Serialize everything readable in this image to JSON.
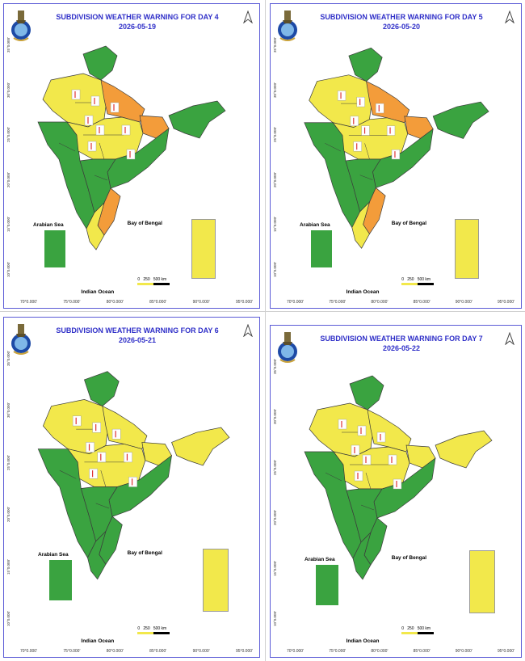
{
  "colors": {
    "green": "#3aa340",
    "yellow": "#f2e84b",
    "orange": "#f39c3a",
    "border": "#5b5bd6",
    "title": "#2f2fc8"
  },
  "x_ticks": [
    "70°0.000'",
    "75°0.000'",
    "80°0.000'",
    "85°0.000'",
    "90°0.000'",
    "95°0.000'"
  ],
  "y_ticks": [
    "10°0.000'",
    "15°0.000'",
    "20°0.000'",
    "25°0.000'",
    "30°0.000'",
    "35°0.000'"
  ],
  "labels": {
    "arabian_sea": "Arabian Sea",
    "bay_of_bengal": "Bay of Bengal",
    "indian_ocean": "Indian Ocean"
  },
  "scale": {
    "zero": "0",
    "mid": "250",
    "end": "500 km"
  },
  "panels": [
    {
      "id": "day4",
      "title": "SUBDIVISION WEATHER WARNING FOR DAY 4",
      "date": "2026-05-19",
      "north_label": "A",
      "legend_box_color": "green",
      "regions": {
        "jk": "green",
        "nw": "yellow",
        "up": "orange",
        "ne": "green",
        "bihar": "orange",
        "west": "green",
        "central": "yellow",
        "east": "green",
        "south": "green",
        "kerala": "yellow",
        "tn": "orange",
        "andaman": "yellow"
      }
    },
    {
      "id": "day5",
      "title": "SUBDIVISION WEATHER WARNING FOR DAY 5",
      "date": "2026-05-20",
      "north_label": "A",
      "legend_box_color": "green",
      "regions": {
        "jk": "green",
        "nw": "yellow",
        "up": "orange",
        "ne": "green",
        "bihar": "orange",
        "west": "green",
        "central": "yellow",
        "east": "green",
        "south": "green",
        "kerala": "yellow",
        "tn": "orange",
        "andaman": "yellow"
      }
    },
    {
      "id": "day6",
      "title": "SUBDIVISION WEATHER WARNING FOR DAY 6",
      "date": "2026-05-21",
      "north_label": "A",
      "legend_box_color": "green",
      "regions": {
        "jk": "green",
        "nw": "yellow",
        "up": "yellow",
        "ne": "yellow",
        "bihar": "yellow",
        "west": "green",
        "central": "yellow",
        "east": "green",
        "south": "green",
        "kerala": "green",
        "tn": "green",
        "andaman": "yellow"
      }
    },
    {
      "id": "day7",
      "title": "SUBDIVISION WEATHER WARNING FOR DAY 7",
      "date": "2026-05-22",
      "north_label": "A",
      "legend_box_color": "green",
      "regions": {
        "jk": "green",
        "nw": "yellow",
        "up": "yellow",
        "ne": "yellow",
        "bihar": "yellow",
        "west": "green",
        "central": "yellow",
        "east": "green",
        "south": "green",
        "kerala": "green",
        "tn": "green",
        "andaman": "yellow"
      }
    }
  ]
}
